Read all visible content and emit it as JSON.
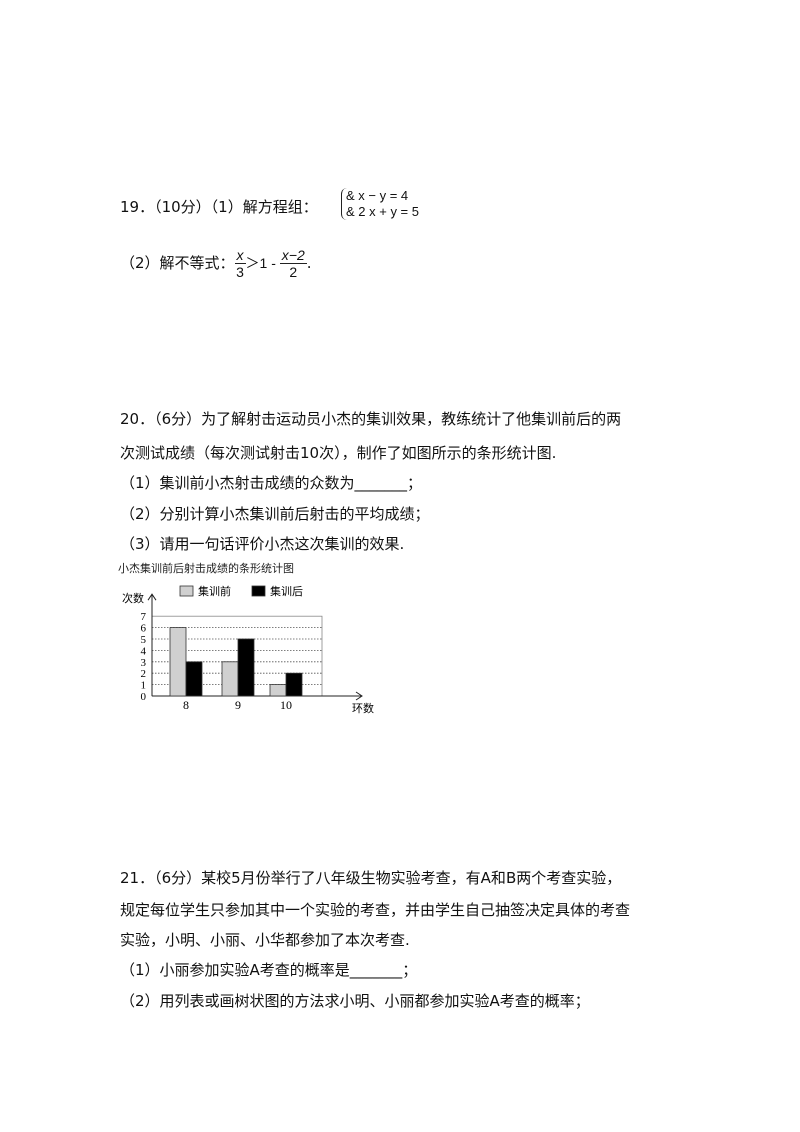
{
  "q19": {
    "head": "19．（10分）（1）解方程组：",
    "system": [
      "& x − y = 4",
      "& 2 x + y = 5"
    ],
    "part2_prefix": "（2）解不等式：",
    "frac1_num": "x",
    "frac1_den": "3",
    "middle": "＞1 - ",
    "frac2_num": "x−2",
    "frac2_den": "2",
    "end": "."
  },
  "q20": {
    "lines": [
      "20．（6分）为了解射击运动员小杰的集训效果，教练统计了他集训前后的两",
      "次测试成绩（每次测试射击10次），制作了如图所示的条形统计图.",
      "（1）集训前小杰射击成绩的众数为_______；",
      "（2）分别计算小杰集训前后射击的平均成绩；",
      "（3）请用一句话评价小杰这次集训的效果."
    ]
  },
  "chart_data": {
    "type": "bar",
    "title": "小杰集训前后射击成绩的条形统计图",
    "xlabel": "环数",
    "ylabel": "次数",
    "categories": [
      "8",
      "9",
      "10"
    ],
    "yticks": [
      "0",
      "1",
      "2",
      "3",
      "4",
      "5",
      "6",
      "7"
    ],
    "ylim": [
      0,
      7
    ],
    "grid": true,
    "legend": "top",
    "series": [
      {
        "name": "集训前",
        "values": [
          6,
          3,
          1
        ],
        "color": "#d0d0d0"
      },
      {
        "name": "集训后",
        "values": [
          3,
          5,
          2
        ],
        "color": "#000000"
      }
    ]
  },
  "q21": {
    "lines": [
      "21．（6分）某校5月份举行了八年级生物实验考查，有A和B两个考查实验，",
      "规定每位学生只参加其中一个实验的考查，并由学生自己抽签决定具体的考查",
      "实验，小明、小丽、小华都参加了本次考查.",
      "（1）小丽参加实验A考查的概率是_______；",
      "（2）用列表或画树状图的方法求小明、小丽都参加实验A考查的概率；"
    ]
  }
}
